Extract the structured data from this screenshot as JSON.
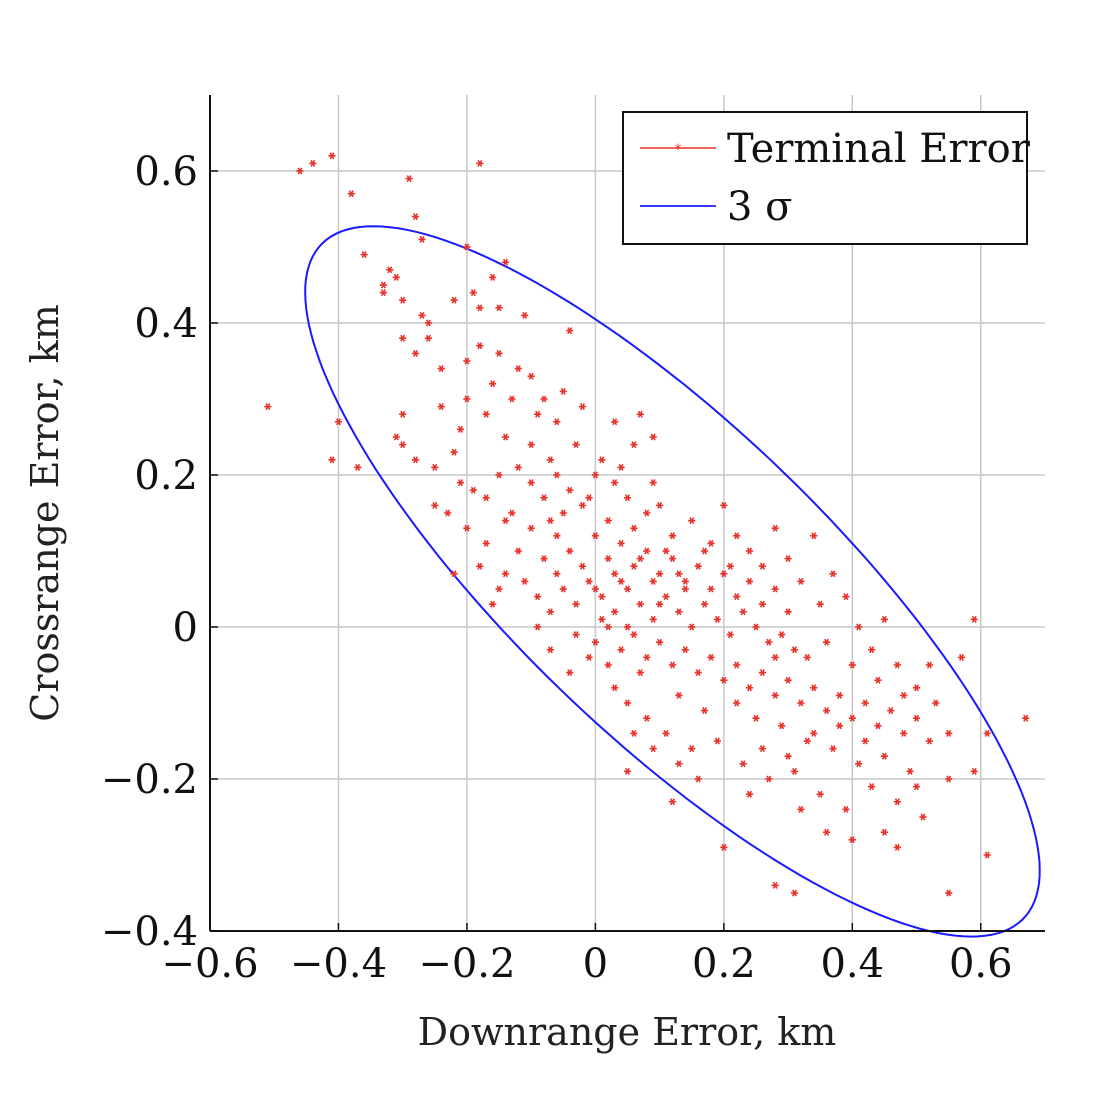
{
  "chart_data": {
    "type": "scatter",
    "xlabel": "Downrange Error, km",
    "ylabel": "Crossrange Error, km",
    "xlim": [
      -0.6,
      0.7
    ],
    "ylim": [
      -0.4,
      0.7
    ],
    "xticks": [
      -0.6,
      -0.4,
      -0.2,
      0,
      0.2,
      0.4,
      0.6
    ],
    "xtick_labels": [
      "−0.6",
      "−0.4",
      "−0.2",
      "0",
      "0.2",
      "0.4",
      "0.6"
    ],
    "yticks": [
      -0.4,
      -0.2,
      0,
      0.2,
      0.4,
      0.6
    ],
    "ytick_labels": [
      "−0.4",
      "−0.2",
      "0",
      "0.2",
      "0.4",
      "0.6"
    ],
    "grid": true,
    "legend_position": "top-right",
    "colors": {
      "points": "#e8322a",
      "ellipse": "#1a1aff"
    },
    "series": [
      {
        "name": "Terminal Error",
        "kind": "points",
        "marker": "asterisk",
        "points": [
          [
            -0.46,
            0.6
          ],
          [
            -0.44,
            0.61
          ],
          [
            -0.41,
            0.62
          ],
          [
            -0.18,
            0.61
          ],
          [
            -0.38,
            0.57
          ],
          [
            -0.29,
            0.59
          ],
          [
            -0.28,
            0.54
          ],
          [
            -0.27,
            0.51
          ],
          [
            -0.2,
            0.5
          ],
          [
            -0.16,
            0.46
          ],
          [
            -0.14,
            0.48
          ],
          [
            -0.18,
            0.42
          ],
          [
            -0.36,
            0.49
          ],
          [
            -0.32,
            0.47
          ],
          [
            -0.31,
            0.46
          ],
          [
            -0.33,
            0.45
          ],
          [
            -0.33,
            0.44
          ],
          [
            -0.3,
            0.43
          ],
          [
            -0.27,
            0.41
          ],
          [
            -0.26,
            0.4
          ],
          [
            -0.19,
            0.44
          ],
          [
            -0.22,
            0.43
          ],
          [
            -0.15,
            0.42
          ],
          [
            -0.11,
            0.41
          ],
          [
            -0.04,
            0.39
          ],
          [
            -0.26,
            0.38
          ],
          [
            -0.3,
            0.38
          ],
          [
            -0.28,
            0.36
          ],
          [
            -0.24,
            0.34
          ],
          [
            -0.2,
            0.35
          ],
          [
            -0.18,
            0.37
          ],
          [
            -0.15,
            0.36
          ],
          [
            -0.12,
            0.34
          ],
          [
            -0.1,
            0.33
          ],
          [
            -0.16,
            0.32
          ],
          [
            -0.13,
            0.3
          ],
          [
            -0.08,
            0.3
          ],
          [
            -0.05,
            0.31
          ],
          [
            -0.2,
            0.3
          ],
          [
            -0.17,
            0.28
          ],
          [
            -0.09,
            0.28
          ],
          [
            -0.06,
            0.27
          ],
          [
            -0.02,
            0.29
          ],
          [
            0.03,
            0.27
          ],
          [
            0.07,
            0.28
          ],
          [
            0.09,
            0.25
          ],
          [
            -0.51,
            0.29
          ],
          [
            -0.4,
            0.27
          ],
          [
            -0.41,
            0.22
          ],
          [
            -0.37,
            0.21
          ],
          [
            -0.3,
            0.28
          ],
          [
            -0.31,
            0.25
          ],
          [
            -0.3,
            0.24
          ],
          [
            -0.28,
            0.22
          ],
          [
            -0.25,
            0.21
          ],
          [
            -0.22,
            0.23
          ],
          [
            -0.21,
            0.19
          ],
          [
            -0.19,
            0.18
          ],
          [
            -0.17,
            0.17
          ],
          [
            -0.15,
            0.2
          ],
          [
            -0.12,
            0.21
          ],
          [
            -0.1,
            0.19
          ],
          [
            -0.08,
            0.17
          ],
          [
            -0.06,
            0.2
          ],
          [
            -0.04,
            0.18
          ],
          [
            -0.02,
            0.16
          ],
          [
            0.01,
            0.22
          ],
          [
            0.03,
            0.19
          ],
          [
            0.05,
            0.17
          ],
          [
            0.08,
            0.15
          ],
          [
            0.1,
            0.16
          ],
          [
            -0.2,
            0.13
          ],
          [
            -0.17,
            0.11
          ],
          [
            -0.14,
            0.14
          ],
          [
            -0.12,
            0.1
          ],
          [
            -0.1,
            0.13
          ],
          [
            -0.08,
            0.09
          ],
          [
            -0.06,
            0.12
          ],
          [
            -0.04,
            0.1
          ],
          [
            -0.02,
            0.08
          ],
          [
            0.0,
            0.12
          ],
          [
            0.02,
            0.09
          ],
          [
            0.04,
            0.11
          ],
          [
            0.06,
            0.08
          ],
          [
            0.08,
            0.1
          ],
          [
            0.1,
            0.07
          ],
          [
            0.12,
            0.09
          ],
          [
            0.14,
            0.06
          ],
          [
            0.16,
            0.08
          ],
          [
            0.18,
            0.05
          ],
          [
            0.2,
            0.07
          ],
          [
            0.22,
            0.04
          ],
          [
            0.24,
            0.06
          ],
          [
            0.26,
            0.03
          ],
          [
            0.28,
            0.05
          ],
          [
            0.3,
            0.02
          ],
          [
            -0.15,
            0.05
          ],
          [
            -0.11,
            0.06
          ],
          [
            -0.09,
            0.04
          ],
          [
            -0.07,
            0.02
          ],
          [
            -0.05,
            0.05
          ],
          [
            -0.03,
            0.03
          ],
          [
            -0.01,
            0.06
          ],
          [
            0.01,
            0.04
          ],
          [
            0.03,
            0.02
          ],
          [
            0.05,
            0.05
          ],
          [
            0.07,
            0.03
          ],
          [
            0.09,
            0.01
          ],
          [
            0.11,
            0.04
          ],
          [
            0.13,
            0.02
          ],
          [
            0.15,
            0.0
          ],
          [
            0.17,
            0.03
          ],
          [
            0.19,
            0.01
          ],
          [
            0.21,
            -0.01
          ],
          [
            0.23,
            0.02
          ],
          [
            0.25,
            0.0
          ],
          [
            0.27,
            -0.02
          ],
          [
            0.29,
            -0.01
          ],
          [
            0.31,
            -0.03
          ],
          [
            0.33,
            -0.04
          ],
          [
            -0.03,
            -0.01
          ],
          [
            0.0,
            -0.02
          ],
          [
            0.02,
            0.0
          ],
          [
            0.04,
            -0.03
          ],
          [
            0.06,
            -0.01
          ],
          [
            0.08,
            -0.04
          ],
          [
            0.1,
            -0.02
          ],
          [
            0.12,
            -0.05
          ],
          [
            0.14,
            -0.03
          ],
          [
            0.16,
            -0.06
          ],
          [
            0.18,
            -0.04
          ],
          [
            0.2,
            -0.07
          ],
          [
            0.22,
            -0.05
          ],
          [
            0.24,
            -0.08
          ],
          [
            0.26,
            -0.06
          ],
          [
            0.28,
            -0.09
          ],
          [
            0.3,
            -0.07
          ],
          [
            0.32,
            -0.1
          ],
          [
            0.34,
            -0.08
          ],
          [
            0.36,
            -0.11
          ],
          [
            0.38,
            -0.09
          ],
          [
            0.4,
            -0.12
          ],
          [
            0.42,
            -0.1
          ],
          [
            0.44,
            -0.13
          ],
          [
            0.46,
            -0.11
          ],
          [
            0.48,
            -0.14
          ],
          [
            0.5,
            -0.12
          ],
          [
            0.52,
            -0.15
          ],
          [
            0.05,
            -0.1
          ],
          [
            0.08,
            -0.12
          ],
          [
            0.11,
            -0.14
          ],
          [
            0.15,
            -0.16
          ],
          [
            0.19,
            -0.15
          ],
          [
            0.23,
            -0.18
          ],
          [
            0.27,
            -0.2
          ],
          [
            0.31,
            -0.19
          ],
          [
            0.35,
            -0.22
          ],
          [
            0.39,
            -0.24
          ],
          [
            0.43,
            -0.21
          ],
          [
            0.47,
            -0.23
          ],
          [
            0.51,
            -0.25
          ],
          [
            0.55,
            -0.2
          ],
          [
            0.59,
            -0.19
          ],
          [
            0.61,
            -0.14
          ],
          [
            0.67,
            -0.12
          ],
          [
            0.57,
            -0.04
          ],
          [
            0.59,
            0.01
          ],
          [
            0.2,
            -0.29
          ],
          [
            0.28,
            -0.34
          ],
          [
            0.31,
            -0.35
          ],
          [
            0.55,
            -0.35
          ],
          [
            0.61,
            -0.3
          ],
          [
            0.12,
            -0.23
          ],
          [
            0.05,
            -0.19
          ],
          [
            0.36,
            -0.27
          ],
          [
            0.4,
            -0.28
          ],
          [
            0.45,
            -0.27
          ],
          [
            0.47,
            -0.29
          ],
          [
            0.28,
            0.13
          ],
          [
            0.3,
            0.09
          ],
          [
            0.34,
            0.12
          ],
          [
            0.37,
            0.07
          ],
          [
            0.39,
            0.04
          ],
          [
            0.41,
            0.0
          ],
          [
            0.43,
            -0.03
          ],
          [
            0.45,
            0.01
          ],
          [
            0.47,
            -0.05
          ],
          [
            0.5,
            -0.08
          ],
          [
            0.53,
            -0.1
          ],
          [
            0.2,
            0.16
          ],
          [
            0.22,
            0.12
          ],
          [
            0.18,
            0.11
          ],
          [
            -0.25,
            0.16
          ],
          [
            -0.23,
            0.15
          ],
          [
            -0.13,
            0.15
          ],
          [
            -0.07,
            0.14
          ],
          [
            -0.05,
            0.15
          ],
          [
            0.02,
            0.14
          ],
          [
            0.06,
            0.13
          ],
          [
            0.12,
            0.12
          ],
          [
            -0.18,
            0.08
          ],
          [
            -0.16,
            0.03
          ],
          [
            -0.14,
            0.07
          ],
          [
            -0.06,
            0.07
          ],
          [
            0.0,
            0.05
          ],
          [
            0.04,
            0.06
          ],
          [
            0.1,
            0.03
          ],
          [
            0.14,
            0.05
          ],
          [
            -0.22,
            0.07
          ],
          [
            -0.09,
            0.0
          ],
          [
            -0.07,
            -0.03
          ],
          [
            0.02,
            -0.05
          ],
          [
            0.07,
            -0.06
          ],
          [
            0.13,
            -0.09
          ],
          [
            0.17,
            -0.11
          ],
          [
            0.25,
            -0.12
          ],
          [
            0.29,
            -0.13
          ],
          [
            0.33,
            -0.15
          ],
          [
            0.37,
            -0.16
          ],
          [
            0.41,
            -0.18
          ],
          [
            0.45,
            -0.17
          ],
          [
            0.49,
            -0.19
          ],
          [
            0.26,
            -0.16
          ],
          [
            0.3,
            -0.17
          ],
          [
            0.34,
            -0.14
          ],
          [
            0.38,
            -0.13
          ],
          [
            0.42,
            -0.15
          ],
          [
            0.22,
            -0.1
          ],
          [
            0.09,
            0.19
          ],
          [
            0.04,
            0.21
          ],
          [
            -0.01,
            0.17
          ],
          [
            0.15,
            0.14
          ],
          [
            -0.03,
            0.24
          ],
          [
            -0.1,
            0.24
          ],
          [
            -0.14,
            0.25
          ],
          [
            -0.21,
            0.26
          ],
          [
            -0.24,
            0.29
          ],
          [
            -0.07,
            0.22
          ],
          [
            0.06,
            0.24
          ],
          [
            0.0,
            0.2
          ],
          [
            0.24,
            0.1
          ],
          [
            0.26,
            0.08
          ],
          [
            0.32,
            0.06
          ],
          [
            0.35,
            0.03
          ],
          [
            0.28,
            -0.04
          ],
          [
            0.36,
            -0.02
          ],
          [
            0.4,
            -0.05
          ],
          [
            0.44,
            -0.07
          ],
          [
            0.48,
            -0.09
          ],
          [
            0.52,
            -0.05
          ],
          [
            0.55,
            -0.14
          ],
          [
            0.5,
            -0.21
          ],
          [
            0.32,
            -0.24
          ],
          [
            0.24,
            -0.22
          ],
          [
            0.16,
            -0.2
          ],
          [
            0.13,
            -0.18
          ],
          [
            0.09,
            -0.16
          ],
          [
            0.06,
            -0.14
          ],
          [
            0.03,
            -0.08
          ],
          [
            -0.01,
            -0.04
          ],
          [
            -0.04,
            -0.06
          ],
          [
            0.01,
            0.01
          ],
          [
            0.05,
            0.0
          ],
          [
            0.09,
            0.06
          ],
          [
            0.13,
            0.07
          ],
          [
            0.17,
            0.1
          ],
          [
            0.21,
            0.08
          ],
          [
            0.11,
            0.1
          ],
          [
            0.07,
            0.09
          ],
          [
            0.03,
            0.07
          ]
        ]
      },
      {
        "name": "3 σ",
        "kind": "ellipse",
        "center": [
          0.12,
          0.06
        ],
        "semi_major": 0.705,
        "semi_minor": 0.22,
        "angle_deg": -38
      }
    ]
  }
}
